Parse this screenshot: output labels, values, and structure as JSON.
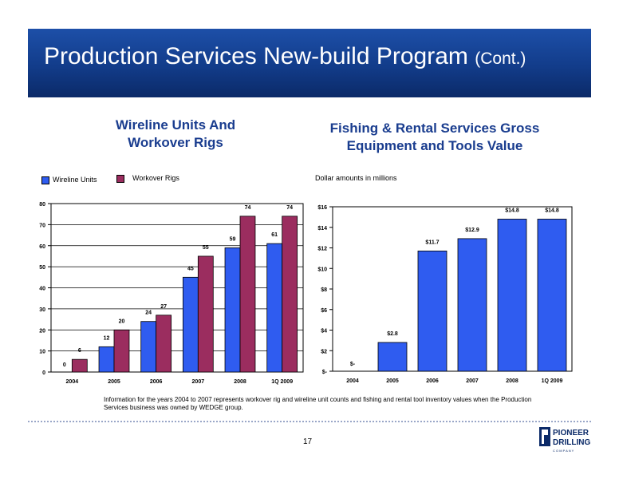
{
  "header": {
    "title": "Production Services New-build Program",
    "title_suffix": "(Cont.)"
  },
  "left_chart": {
    "title_line1": "Wireline Units And",
    "title_line2": "Workover Rigs",
    "legend": [
      "Wireline Units",
      "Workover Rigs"
    ]
  },
  "right_chart": {
    "title_line1": "Fishing & Rental Services Gross",
    "title_line2": "Equipment and Tools Value",
    "subtitle": "Dollar amounts in millions"
  },
  "footnote": "Information for the years 2004 to 2007 represents workover rig and wireline unit counts and fishing and rental tool inventory values when the Production Services business was owned by WEDGE group.",
  "page_number": "17",
  "logo": {
    "line1": "PIONEER",
    "line2": "DRILLING",
    "line3": "C O M P A N Y"
  },
  "colors": {
    "banner": "#123c8a",
    "blue_bar": "#2f5cf0",
    "maroon_bar": "#9b2d5f",
    "title_blue": "#1a3d8f"
  },
  "chart_data": [
    {
      "type": "bar",
      "title": "Wireline Units And Workover Rigs",
      "categories": [
        "2004",
        "2005",
        "2006",
        "2007",
        "2008",
        "1Q 2009"
      ],
      "series": [
        {
          "name": "Wireline Units",
          "values": [
            0,
            12,
            24,
            45,
            59,
            61
          ],
          "labels": [
            "0",
            "12",
            "24",
            "45",
            "59",
            "61"
          ],
          "color": "#2f5cf0"
        },
        {
          "name": "Workover Rigs",
          "values": [
            6,
            20,
            27,
            55,
            74,
            74
          ],
          "labels": [
            "6",
            "20",
            "27",
            "55",
            "74",
            "74"
          ],
          "color": "#9b2d5f"
        }
      ],
      "ylim": [
        0,
        80
      ],
      "yticks": [
        "0",
        "10",
        "20",
        "30",
        "40",
        "50",
        "60",
        "70",
        "80"
      ],
      "grid": true,
      "legend_position": "top-left"
    },
    {
      "type": "bar",
      "title": "Fishing & Rental Services Gross Equipment and Tools Value",
      "categories": [
        "2004",
        "2005",
        "2006",
        "2007",
        "2008",
        "1Q 2009"
      ],
      "series": [
        {
          "values": [
            0,
            2.8,
            11.7,
            12.9,
            14.8,
            14.8
          ],
          "labels": [
            "$-",
            "$2.8",
            "$11.7",
            "$12.9",
            "$14.8",
            "$14.8"
          ],
          "color": "#2f5cf0"
        }
      ],
      "ylim": [
        0,
        16
      ],
      "yticks": [
        "$-",
        "$2",
        "$4",
        "$6",
        "$8",
        "$10",
        "$12",
        "$14",
        "$16"
      ],
      "grid": false
    }
  ]
}
